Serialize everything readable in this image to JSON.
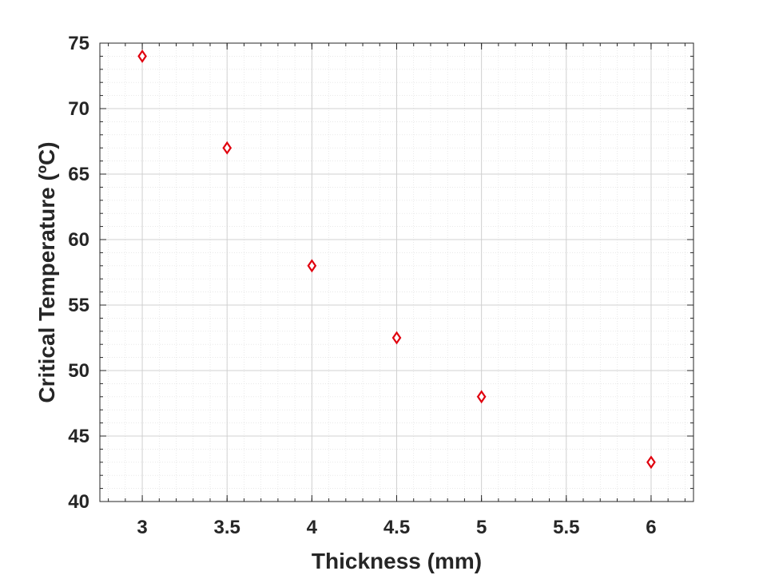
{
  "chart_data": {
    "type": "scatter",
    "title": "",
    "xlabel": "Thickness (mm)",
    "ylabel": "Critical Temperature (ºC)",
    "xlim": [
      2.75,
      6.25
    ],
    "ylim": [
      40,
      75
    ],
    "xticks": [
      3,
      3.5,
      4,
      4.5,
      5,
      5.5,
      6
    ],
    "xtick_labels": [
      "3",
      "3.5",
      "4",
      "4.5",
      "5",
      "5.5",
      "6"
    ],
    "yticks": [
      40,
      45,
      50,
      55,
      60,
      65,
      70,
      75
    ],
    "ytick_labels": [
      "40",
      "45",
      "50",
      "55",
      "60",
      "65",
      "70",
      "75"
    ],
    "grid": true,
    "minor_grid": true,
    "marker": "diamond",
    "marker_color": "#e0000e",
    "series": [
      {
        "x": [
          3,
          3.5,
          4,
          4.5,
          5,
          6
        ],
        "y": [
          74,
          67,
          58,
          52.5,
          48,
          43
        ]
      }
    ]
  }
}
